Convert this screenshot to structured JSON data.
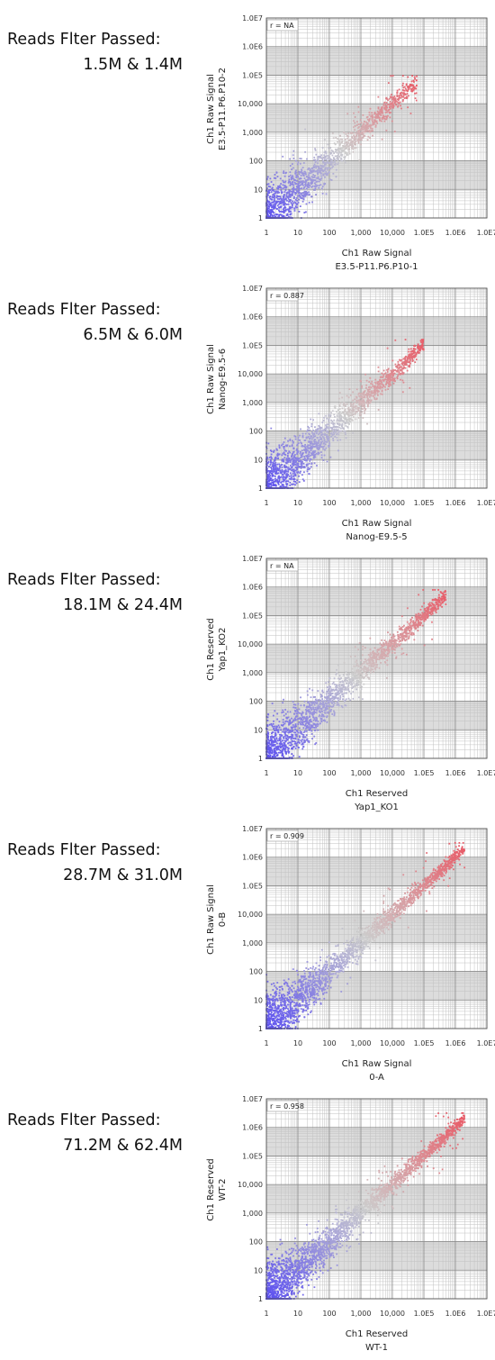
{
  "panels": [
    {
      "reads_label": "Reads Flter Passed:",
      "reads_values": "1.5M & 1.4M"
    },
    {
      "reads_label": "Reads Flter Passed:",
      "reads_values": "6.5M & 6.0M"
    },
    {
      "reads_label": "Reads Flter Passed:",
      "reads_values": "18.1M & 24.4M"
    },
    {
      "reads_label": "Reads Flter Passed:",
      "reads_values": "28.7M & 31.0M"
    },
    {
      "reads_label": "Reads Flter Passed:",
      "reads_values": "71.2M & 62.4M"
    }
  ],
  "colors": {
    "low": "#5b4ff0",
    "mid": "#cccccc",
    "high": "#e85c68",
    "grid": "#8a8a8a",
    "gridMinor": "#c2c2c2",
    "band": "#dcdcdc"
  },
  "chart_data": [
    {
      "type": "scatter",
      "scale": "log10",
      "xlim": [
        1,
        10000000
      ],
      "ylim": [
        1,
        10000000
      ],
      "tick_values": [
        1,
        10,
        100,
        1000,
        10000,
        100000,
        1000000,
        10000000
      ],
      "tick_labels": [
        "1",
        "10",
        "100",
        "1,000",
        "10,000",
        "1.0E5",
        "1.0E6",
        "1.0E7"
      ],
      "annotation": "r = NA",
      "xlabel": [
        "Ch1 Raw Signal",
        "E3.5-P11.P6.P10-1"
      ],
      "ylabel": [
        "Ch1 Raw Signal",
        "E3.5-P11.P6.P10-2"
      ],
      "point_range": [
        1,
        60000
      ],
      "grid": true
    },
    {
      "type": "scatter",
      "scale": "log10",
      "xlim": [
        1,
        10000000
      ],
      "ylim": [
        1,
        10000000
      ],
      "tick_values": [
        1,
        10,
        100,
        1000,
        10000,
        100000,
        1000000,
        10000000
      ],
      "tick_labels": [
        "1",
        "10",
        "100",
        "1,000",
        "10,000",
        "1.0E5",
        "1.0E6",
        "1.0E7"
      ],
      "annotation": "r = 0.887",
      "xlabel": [
        "Ch1 Raw Signal",
        "Nanog-E9.5-5"
      ],
      "ylabel": [
        "Ch1 Raw Signal",
        "Nanog-E9.5-6"
      ],
      "point_range": [
        1,
        100000
      ],
      "grid": true
    },
    {
      "type": "scatter",
      "scale": "log10",
      "xlim": [
        1,
        10000000
      ],
      "ylim": [
        1,
        10000000
      ],
      "tick_values": [
        1,
        10,
        100,
        1000,
        10000,
        100000,
        1000000,
        10000000
      ],
      "tick_labels": [
        "1",
        "10",
        "100",
        "1,000",
        "10,000",
        "1.0E5",
        "1.0E6",
        "1.0E7"
      ],
      "annotation": "r = NA",
      "xlabel": [
        "Ch1 Reserved",
        "Yap1_KO1"
      ],
      "ylabel": [
        "Ch1 Reserved",
        "Yap1_KO2"
      ],
      "point_range": [
        1,
        500000
      ],
      "grid": true
    },
    {
      "type": "scatter",
      "scale": "log10",
      "xlim": [
        1,
        10000000
      ],
      "ylim": [
        1,
        10000000
      ],
      "tick_values": [
        1,
        10,
        100,
        1000,
        10000,
        100000,
        1000000,
        10000000
      ],
      "tick_labels": [
        "1",
        "10",
        "100",
        "1,000",
        "10,000",
        "1.0E5",
        "1.0E6",
        "1.0E7"
      ],
      "annotation": "r = 0.909",
      "xlabel": [
        "Ch1 Raw Signal",
        "0-A"
      ],
      "ylabel": [
        "Ch1 Raw Signal",
        "0-B"
      ],
      "point_range": [
        1,
        2000000
      ],
      "grid": true
    },
    {
      "type": "scatter",
      "scale": "log10",
      "xlim": [
        1,
        10000000
      ],
      "ylim": [
        1,
        10000000
      ],
      "tick_values": [
        1,
        10,
        100,
        1000,
        10000,
        100000,
        1000000,
        10000000
      ],
      "tick_labels": [
        "1",
        "10",
        "100",
        "1,000",
        "10,000",
        "1.0E5",
        "1.0E6",
        "1.0E7"
      ],
      "annotation": "r = 0.958",
      "xlabel": [
        "Ch1 Reserved",
        "WT-1"
      ],
      "ylabel": [
        "Ch1 Reserved",
        "WT-2"
      ],
      "point_range": [
        1,
        2000000
      ],
      "grid": true
    }
  ]
}
